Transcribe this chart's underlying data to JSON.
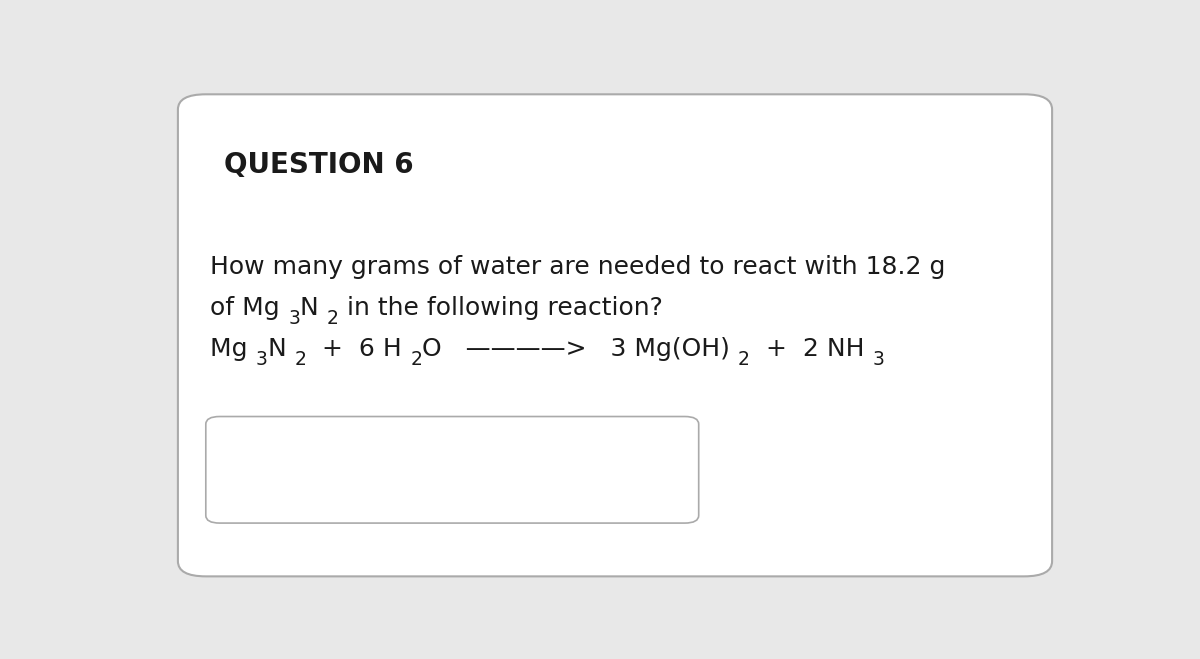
{
  "bg_color": "#e8e8e8",
  "card_color": "#ffffff",
  "card_border_color": "#aaaaaa",
  "question_label": "QUESTION 6",
  "question_label_fontsize": 20,
  "body_text_line1": "How many grams of water are needed to react with 18.2 g",
  "body_text_line2": "of Mg 3N 2 in the following reaction?",
  "body_fontsize": 18,
  "equation_fontsize": 18,
  "text_color": "#1a1a1a",
  "font_family": "DejaVu Sans",
  "answer_box_border_color": "#aaaaaa"
}
